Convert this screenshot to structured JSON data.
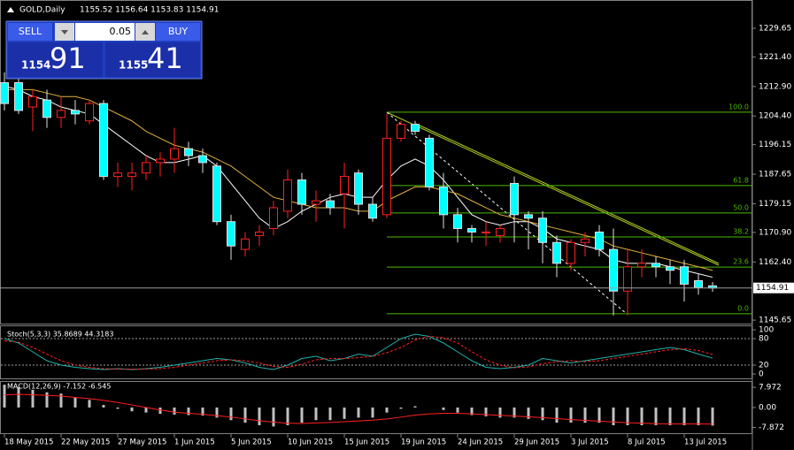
{
  "header": {
    "symbol": "GOLD,Daily",
    "ohlc": "1155.52 1156.64 1153.83 1154.91"
  },
  "trade_panel": {
    "sell": "SELL",
    "buy": "BUY",
    "lot": "0.05",
    "sell_small": "1154",
    "sell_big": "91",
    "buy_small": "1155",
    "buy_big": "41"
  },
  "chart_data": [
    {
      "type": "candlestick",
      "categories": [
        "18 May 2015",
        null,
        null,
        null,
        "22 May 2015",
        null,
        null,
        null,
        "27 May 2015",
        null,
        null,
        null,
        "1 Jun 2015",
        null,
        null,
        null,
        "5 Jun 2015",
        null,
        null,
        null,
        "10 Jun 2015",
        null,
        null,
        null,
        "15 Jun 2015",
        null,
        null,
        null,
        "19 Jun 2015",
        null,
        null,
        null,
        "24 Jun 2015",
        null,
        null,
        null,
        "29 Jun 2015",
        null,
        null,
        null,
        "3 Jul 2015",
        null,
        null,
        null,
        "8 Jul 2015",
        null,
        null,
        null,
        "13 Jul 2015",
        null,
        null
      ],
      "open": [
        1214,
        1214,
        1207,
        1209,
        1204,
        1206,
        1203,
        1208,
        1187,
        1187,
        1188,
        1191,
        1192,
        1195,
        1193,
        1190,
        1174,
        1166,
        1170,
        1172,
        1177,
        1186,
        1179,
        1180,
        1182,
        1188,
        1179,
        1176,
        1198,
        1202,
        1198,
        1184,
        1176,
        1172,
        1171,
        1170,
        1185,
        1176,
        1175,
        1168,
        1162,
        1168,
        1171,
        1166,
        1154,
        1161,
        1162,
        1161,
        1161,
        1157,
        1155.52
      ],
      "high": [
        1217,
        1222,
        1212,
        1212,
        1210,
        1209,
        1209,
        1209,
        1191,
        1191,
        1193,
        1194,
        1201,
        1197,
        1195,
        1191,
        1176,
        1171,
        1173,
        1180,
        1189,
        1188,
        1183,
        1182,
        1191,
        1189,
        1181,
        1205,
        1203,
        1203,
        1199,
        1188,
        1178,
        1173,
        1174,
        1173,
        1187,
        1177,
        1177,
        1170,
        1169,
        1171,
        1173,
        1172,
        1166,
        1166,
        1164,
        1163,
        1163,
        1159,
        1156.64
      ],
      "low": [
        1206,
        1205,
        1200,
        1201,
        1201,
        1202,
        1202,
        1186,
        1184,
        1183,
        1186,
        1187,
        1188,
        1190,
        1188,
        1173,
        1163,
        1164,
        1167,
        1170,
        1175,
        1176,
        1174,
        1176,
        1172,
        1176,
        1174,
        1175,
        1197,
        1199,
        1183,
        1172,
        1168,
        1168,
        1167,
        1168,
        1168,
        1166,
        1162,
        1158,
        1160,
        1164,
        1164,
        1147,
        1147,
        1158,
        1158,
        1156,
        1151,
        1153,
        1153.83
      ],
      "close": [
        1208,
        1206,
        1210,
        1204,
        1206,
        1205,
        1208,
        1187,
        1188,
        1188,
        1191,
        1192,
        1195,
        1193,
        1191,
        1174,
        1167,
        1169,
        1171,
        1178,
        1186,
        1179,
        1180,
        1178,
        1187,
        1179,
        1175,
        1198,
        1202,
        1200,
        1184,
        1176,
        1172,
        1171,
        1171,
        1172,
        1176,
        1175,
        1168,
        1162,
        1168,
        1169,
        1166,
        1154,
        1161,
        1162,
        1161,
        1160,
        1156,
        1155,
        1154.91
      ],
      "up_color": "#ff2020",
      "down_color": "#00ffff",
      "series": [
        {
          "color": "#ffffff",
          "values": [
            1213,
            1212,
            1210,
            1209,
            1207,
            1206,
            1205,
            1202,
            1199,
            1196,
            1193,
            1191,
            1191,
            1192,
            1193,
            1190,
            1185,
            1180,
            1175,
            1172,
            1174,
            1177,
            1179,
            1181,
            1182,
            1181,
            1181,
            1186,
            1190,
            1192,
            1190,
            1186,
            1181,
            1176,
            1174,
            1173,
            1174,
            1174,
            1172,
            1169,
            1168,
            1167,
            1166,
            1163,
            1162,
            1162,
            1162,
            1161,
            1160,
            1159,
            1158
          ]
        },
        {
          "color": "#e0b040",
          "values": [
            1212,
            1212,
            1212,
            1211,
            1210,
            1210,
            1209,
            1207,
            1205,
            1203,
            1200,
            1198,
            1196,
            1195,
            1194,
            1192,
            1190,
            1187,
            1184,
            1181,
            1180,
            1179,
            1178,
            1178,
            1178,
            1177,
            1177,
            1180,
            1182,
            1184,
            1184,
            1183,
            1182,
            1180,
            1178,
            1176,
            1175,
            1174,
            1173,
            1172,
            1171,
            1170,
            1169,
            1167,
            1166,
            1165,
            1164,
            1163,
            1162,
            1161,
            1160
          ]
        }
      ],
      "fib_color": "#4cb800",
      "fib_levels": [
        {
          "label": "100.0",
          "price": 1205.5
        },
        {
          "label": "61.8",
          "price": 1184.4
        },
        {
          "label": "50.0",
          "price": 1176.5
        },
        {
          "label": "38.2",
          "price": 1169.6
        },
        {
          "label": "23.6",
          "price": 1160.9
        },
        {
          "label": "0.0",
          "price": 1147.5
        }
      ],
      "ylim": [
        1144.4,
        1237.8
      ],
      "yticks": [
        1229.65,
        {
          "value": 1221.4,
          "label": "1221.40"
        },
        {
          "value": 1212.9,
          "label": "1212.90"
        },
        {
          "value": 1204.4,
          "label": "1204.40"
        },
        1196.15,
        1187.65,
        1179.15,
        {
          "value": 1170.9,
          "label": "1170.90"
        },
        {
          "value": 1162.4,
          "label": "1162.40"
        },
        1145.65
      ]
    },
    {
      "type": "line",
      "title": "Stoch(5,3,3) 35.8689 44.3183",
      "series": [
        {
          "color": "#20b2aa",
          "values": [
            80,
            70,
            50,
            30,
            20,
            15,
            12,
            10,
            12,
            10,
            12,
            15,
            20,
            25,
            30,
            35,
            32,
            25,
            15,
            10,
            20,
            35,
            40,
            30,
            35,
            45,
            40,
            60,
            80,
            90,
            85,
            70,
            50,
            30,
            15,
            12,
            15,
            20,
            35,
            30,
            25,
            30,
            35,
            40,
            45,
            50,
            55,
            60,
            55,
            45,
            35.8689
          ]
        },
        {
          "color": "#ff2020",
          "dash": true,
          "values": [
            75,
            72,
            60,
            45,
            30,
            20,
            15,
            12,
            11,
            11,
            11,
            12,
            15,
            20,
            25,
            30,
            32,
            30,
            25,
            17,
            15,
            22,
            32,
            35,
            35,
            37,
            40,
            48,
            60,
            77,
            85,
            82,
            70,
            50,
            32,
            20,
            14,
            16,
            23,
            28,
            30,
            28,
            30,
            35,
            40,
            45,
            50,
            55,
            57,
            53,
            44.3183
          ]
        }
      ],
      "ylim": [
        0,
        100
      ],
      "yticks": [
        100,
        80,
        20,
        0
      ]
    },
    {
      "type": "bar",
      "title": "MACD(12,26,9) -7.152 -6.545",
      "color": "#c0c0c0",
      "values": [
        9,
        8,
        7,
        6,
        5.5,
        4,
        3,
        1,
        -0.5,
        -1.5,
        -2,
        -2.5,
        -2.8,
        -3,
        -3.2,
        -4,
        -5,
        -6,
        -7,
        -7.5,
        -7,
        -6,
        -5,
        -5,
        -4.5,
        -4,
        -4,
        -2,
        -0.5,
        0.5,
        0,
        -1,
        -2,
        -3,
        -3.5,
        -4,
        -4,
        -4.5,
        -5,
        -6,
        -6,
        -6,
        -6,
        -7,
        -7,
        -7,
        -7,
        -7,
        -7,
        -7,
        -7.152
      ],
      "series": [
        {
          "color": "#ff2020",
          "values": [
            5,
            5.2,
            5,
            4.8,
            4.5,
            4,
            3.5,
            2.8,
            2,
            1,
            0,
            -1,
            -1.8,
            -2.3,
            -2.7,
            -3.2,
            -3.8,
            -4.5,
            -5.2,
            -5.8,
            -6.2,
            -6.3,
            -6.1,
            -5.9,
            -5.6,
            -5.3,
            -5,
            -4.5,
            -3.8,
            -3,
            -2.5,
            -2.3,
            -2.3,
            -2.5,
            -2.8,
            -3.1,
            -3.4,
            -3.7,
            -4,
            -4.4,
            -4.8,
            -5.1,
            -5.4,
            -5.7,
            -6,
            -6.2,
            -6.4,
            -6.5,
            -6.5,
            -6.5,
            -6.545
          ]
        }
      ],
      "ylim": [
        -10.5,
        10.1
      ],
      "yticks": [
        7.972,
        {
          "value": 0,
          "label": "0.00"
        },
        -7.872
      ]
    }
  ]
}
